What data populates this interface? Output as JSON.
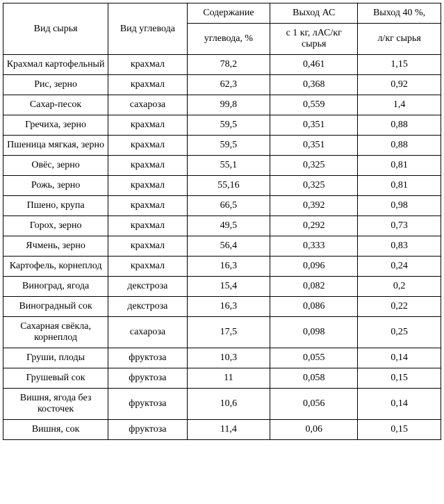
{
  "table": {
    "headers": {
      "raw_material": "Вид сырья",
      "carbohydrate": "Вид углевода",
      "content_group": "Содержание",
      "content_sub": "углевода, %",
      "yield_ac_group": "Выход АС",
      "yield_ac_sub": "с 1 кг, лАС/кг сырья",
      "yield_40_group": "Выход 40 %,",
      "yield_40_sub": "л/кг сырья"
    },
    "rows": [
      {
        "raw_material": "Крахмал картофельный",
        "carbohydrate": "крахмал",
        "content": "78,2",
        "yield_ac": "0,461",
        "yield_40": "1,15"
      },
      {
        "raw_material": "Рис, зерно",
        "carbohydrate": "крахмал",
        "content": "62,3",
        "yield_ac": "0,368",
        "yield_40": "0,92"
      },
      {
        "raw_material": "Сахар-песок",
        "carbohydrate": "сахароза",
        "content": "99,8",
        "yield_ac": "0,559",
        "yield_40": "1,4"
      },
      {
        "raw_material": "Гречиха, зерно",
        "carbohydrate": "крахмал",
        "content": "59,5",
        "yield_ac": "0,351",
        "yield_40": "0,88"
      },
      {
        "raw_material": "Пшеница мягкая, зерно",
        "carbohydrate": "крахмал",
        "content": "59,5",
        "yield_ac": "0,351",
        "yield_40": "0,88"
      },
      {
        "raw_material": "Овёс, зерно",
        "carbohydrate": "крахмал",
        "content": "55,1",
        "yield_ac": "0,325",
        "yield_40": "0,81"
      },
      {
        "raw_material": "Рожь, зерно",
        "carbohydrate": "крахмал",
        "content": "55,16",
        "yield_ac": "0,325",
        "yield_40": "0,81"
      },
      {
        "raw_material": "Пшено, крупа",
        "carbohydrate": "крахмал",
        "content": "66,5",
        "yield_ac": "0,392",
        "yield_40": "0,98"
      },
      {
        "raw_material": "Горох, зерно",
        "carbohydrate": "крахмал",
        "content": "49,5",
        "yield_ac": "0,292",
        "yield_40": "0,73"
      },
      {
        "raw_material": "Ячмень, зерно",
        "carbohydrate": "крахмал",
        "content": "56,4",
        "yield_ac": "0,333",
        "yield_40": "0,83"
      },
      {
        "raw_material": "Картофель, корнеплод",
        "carbohydrate": "крахмал",
        "content": "16,3",
        "yield_ac": "0,096",
        "yield_40": "0,24"
      },
      {
        "raw_material": "Виноград, ягода",
        "carbohydrate": "декстроза",
        "content": "15,4",
        "yield_ac": "0,082",
        "yield_40": "0,2"
      },
      {
        "raw_material": "Виноградный сок",
        "carbohydrate": "декстроза",
        "content": "16,3",
        "yield_ac": "0,086",
        "yield_40": "0,22"
      },
      {
        "raw_material": "Сахарная свёкла, корнеплод",
        "carbohydrate": "сахароза",
        "content": "17,5",
        "yield_ac": "0,098",
        "yield_40": "0,25"
      },
      {
        "raw_material": "Груши, плоды",
        "carbohydrate": "фруктоза",
        "content": "10,3",
        "yield_ac": "0,055",
        "yield_40": "0,14"
      },
      {
        "raw_material": "Грушевый сок",
        "carbohydrate": "фруктоза",
        "content": "11",
        "yield_ac": "0,058",
        "yield_40": "0,15"
      },
      {
        "raw_material": "Вишня, ягода без косточек",
        "carbohydrate": "фруктоза",
        "content": "10,6",
        "yield_ac": "0,056",
        "yield_40": "0,14"
      },
      {
        "raw_material": "Вишня, сок",
        "carbohydrate": "фруктоза",
        "content": "11,4",
        "yield_ac": "0,06",
        "yield_40": "0,15"
      }
    ]
  }
}
